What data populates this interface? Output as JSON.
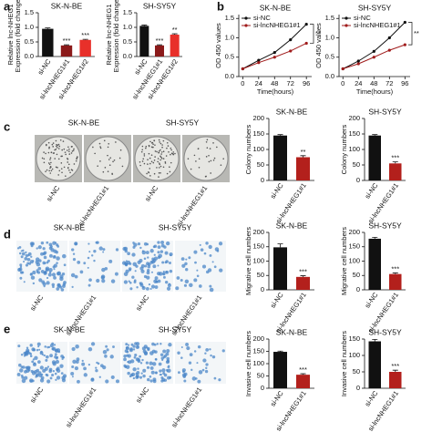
{
  "panel_labels": [
    "a",
    "b",
    "c",
    "d",
    "e"
  ],
  "image_panels": [
    {
      "titles": [
        "SK-N-BE",
        "SH-SY5Y"
      ],
      "labels": [
        "si-NC",
        "si-lncNHEG1#1",
        "si-NC",
        "si-lncNHEG1#1"
      ]
    },
    {
      "titles": [
        "SK-N-BE",
        "SH-SY5Y"
      ],
      "labels": [
        "si-NC",
        "si-lncNHEG1#1",
        "si-NC",
        "si-lncNHEG1#1"
      ]
    },
    {
      "titles": [
        "SK-N-BE",
        "SH-SY5Y"
      ],
      "labels": [
        "si-NC",
        "si-lncNHEG1#1",
        "si-NC",
        "si-lncNHEG1#1"
      ]
    }
  ],
  "chart_data": [
    {
      "type": "bar",
      "title": "SK-N-BE",
      "ylabel": [
        "Relative lnc-NHEG1",
        "Expression (fold change)"
      ],
      "categories": [
        "si-NC",
        "si-lncNHEG1#1",
        "si-lncNHEG1#2"
      ],
      "values": [
        0.95,
        0.38,
        0.57
      ],
      "errors": [
        0.03,
        0.02,
        0.02
      ],
      "colors": [
        "#111111",
        "#8b1a1a",
        "#e8302a"
      ],
      "value_annotations": [
        null,
        "***",
        "***"
      ],
      "ylim": [
        0,
        1.5
      ],
      "yticks": [
        {
          "value": 0,
          "label": "0.0"
        },
        0.5,
        {
          "value": 1,
          "label": "1.0"
        },
        1.5
      ]
    },
    {
      "type": "bar",
      "title": "SH-SY5Y",
      "ylabel": [
        "Relative lnc-NHEG1",
        "Expression (fold change)"
      ],
      "categories": [
        "si-NC",
        "si-lncNHEG1#1",
        "si-lncNHEG1#2"
      ],
      "values": [
        1.05,
        0.38,
        0.75
      ],
      "errors": [
        0.03,
        0.02,
        0.03
      ],
      "colors": [
        "#111111",
        "#8b1a1a",
        "#e8302a"
      ],
      "value_annotations": [
        null,
        "***",
        "**"
      ],
      "ylim": [
        0,
        1.5
      ],
      "yticks": [
        {
          "value": 0,
          "label": "0.0"
        },
        0.5,
        {
          "value": 1,
          "label": "1.0"
        },
        1.5
      ]
    },
    {
      "type": "line",
      "title": "SK-N-BE",
      "ylabel": "OD 450 values",
      "xlabel": "Time(hours)",
      "x": [
        0,
        24,
        48,
        72,
        96
      ],
      "xlim": [
        -6,
        104
      ],
      "xticks": [
        0,
        24,
        48,
        72,
        96
      ],
      "ylim": [
        0,
        1.6
      ],
      "yticks": [
        {
          "value": 0,
          "label": "0.0"
        },
        0.5,
        {
          "value": 1,
          "label": "1.0"
        },
        1.5
      ],
      "series": [
        {
          "name": "si-NC",
          "color": "#111111",
          "values": [
            0.2,
            0.42,
            0.62,
            0.95,
            1.35
          ]
        },
        {
          "name": "si-lncNHEG1#1",
          "color": "#a01c1c",
          "values": [
            0.2,
            0.36,
            0.5,
            0.66,
            0.86
          ]
        }
      ],
      "annotation": "**"
    },
    {
      "type": "line",
      "title": "SH-SY5Y",
      "ylabel": "OD 450 values",
      "xlabel": "Time(hours)",
      "x": [
        0,
        24,
        48,
        72,
        96
      ],
      "xlim": [
        -6,
        104
      ],
      "xticks": [
        0,
        24,
        48,
        72,
        96
      ],
      "ylim": [
        0,
        1.6
      ],
      "yticks": [
        {
          "value": 0,
          "label": "0.0"
        },
        0.5,
        {
          "value": 1,
          "label": "1.0"
        },
        1.5
      ],
      "series": [
        {
          "name": "si-NC",
          "color": "#111111",
          "values": [
            0.2,
            0.4,
            0.65,
            1.0,
            1.4
          ]
        },
        {
          "name": "si-lncNHEG1#1",
          "color": "#a01c1c",
          "values": [
            0.2,
            0.33,
            0.5,
            0.68,
            0.82
          ]
        }
      ],
      "annotation": "**"
    },
    {
      "type": "bar",
      "title": "SK-N-BE",
      "ylabel": "Colony numbers",
      "categories": [
        "si-NC",
        "si-lncNHEG1#1"
      ],
      "values": [
        145,
        75
      ],
      "errors": [
        3,
        5
      ],
      "colors": [
        "#111111",
        "#b3201c"
      ],
      "value_annotations": [
        null,
        "**"
      ],
      "ylim": [
        0,
        200
      ],
      "yticks": [
        0,
        50,
        100,
        150,
        200
      ]
    },
    {
      "type": "bar",
      "title": "SH-SY5Y",
      "ylabel": "Colony numbers",
      "categories": [
        "si-NC",
        "si-lncNHEG1#1"
      ],
      "values": [
        145,
        55
      ],
      "errors": [
        3,
        5
      ],
      "colors": [
        "#111111",
        "#b3201c"
      ],
      "value_annotations": [
        null,
        "***"
      ],
      "ylim": [
        0,
        200
      ],
      "yticks": [
        0,
        50,
        100,
        150,
        200
      ]
    },
    {
      "type": "bar",
      "title": "SK-N-BE",
      "ylabel": "Migrative cell numbers",
      "categories": [
        "si-NC",
        "si-lncNHEG1#1"
      ],
      "values": [
        148,
        45
      ],
      "errors": [
        12,
        4
      ],
      "colors": [
        "#111111",
        "#b3201c"
      ],
      "value_annotations": [
        null,
        "***"
      ],
      "ylim": [
        0,
        200
      ],
      "yticks": [
        0,
        50,
        100,
        150,
        200
      ]
    },
    {
      "type": "bar",
      "title": "SH-SY5Y",
      "ylabel": "Migrative cell numbers",
      "categories": [
        "si-NC",
        "si-lncNHEG1#1"
      ],
      "values": [
        178,
        55
      ],
      "errors": [
        5,
        4
      ],
      "colors": [
        "#111111",
        "#b3201c"
      ],
      "value_annotations": [
        null,
        "***"
      ],
      "ylim": [
        0,
        200
      ],
      "yticks": [
        0,
        50,
        100,
        150,
        200
      ]
    },
    {
      "type": "bar",
      "title": "SK-N-BE",
      "ylabel": "Invasive cell numbers",
      "categories": [
        "si-NC",
        "si-lncNHEG1#1"
      ],
      "values": [
        148,
        55
      ],
      "errors": [
        3,
        4
      ],
      "colors": [
        "#111111",
        "#b3201c"
      ],
      "value_annotations": [
        null,
        "***"
      ],
      "ylim": [
        0,
        200
      ],
      "yticks": [
        0,
        50,
        100,
        150,
        200
      ]
    },
    {
      "type": "bar",
      "title": "SH-SY5Y",
      "ylabel": "Invasive cell numbers",
      "categories": [
        "si-NC",
        "si-lncNHEG1#1"
      ],
      "values": [
        143,
        50
      ],
      "errors": [
        6,
        5
      ],
      "colors": [
        "#111111",
        "#b3201c"
      ],
      "value_annotations": [
        null,
        "***"
      ],
      "ylim": [
        0,
        150
      ],
      "yticks": [
        0,
        50,
        100,
        150
      ]
    }
  ]
}
